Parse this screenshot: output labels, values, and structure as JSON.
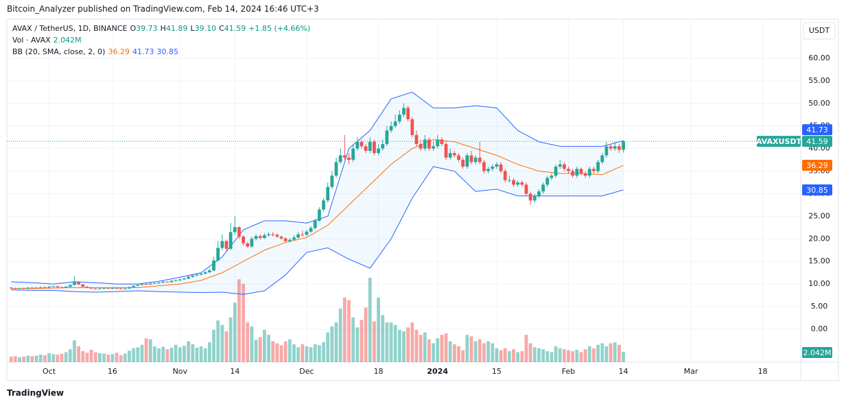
{
  "header": "Bitcoin_Analyzer published on TradingView.com, Feb 14, 2024 16:46 UTC+3",
  "footer": "TradingView",
  "chart_data": {
    "type": "candlestick",
    "legend": {
      "symbol": "AVAX / TetherUS, 1D, BINANCE",
      "o": "O",
      "open": "39.73",
      "h": "H",
      "high": "41.89",
      "l": "L",
      "low": "39.10",
      "c": "C",
      "close": "41.59",
      "change": "+1.85 (+4.66%)",
      "vol": "Vol · AVAX",
      "vol_value": "2.042M",
      "bb": "BB (20, SMA, close, 2, 0)"
    },
    "currency": "USDT",
    "symbol_tag": "AVAXUSDT",
    "x": [
      "2023-09-22",
      "2023-09-23",
      "2023-09-24",
      "2023-09-25",
      "2023-09-26",
      "2023-09-27",
      "2023-09-28",
      "2023-09-29",
      "2023-09-30",
      "2023-10-01",
      "2023-10-02",
      "2023-10-03",
      "2023-10-04",
      "2023-10-05",
      "2023-10-06",
      "2023-10-07",
      "2023-10-08",
      "2023-10-09",
      "2023-10-10",
      "2023-10-11",
      "2023-10-12",
      "2023-10-13",
      "2023-10-14",
      "2023-10-15",
      "2023-10-16",
      "2023-10-17",
      "2023-10-18",
      "2023-10-19",
      "2023-10-20",
      "2023-10-21",
      "2023-10-22",
      "2023-10-23",
      "2023-10-24",
      "2023-10-25",
      "2023-10-26",
      "2023-10-27",
      "2023-10-28",
      "2023-10-29",
      "2023-10-30",
      "2023-10-31",
      "2023-11-01",
      "2023-11-02",
      "2023-11-03",
      "2023-11-04",
      "2023-11-05",
      "2023-11-06",
      "2023-11-07",
      "2023-11-08",
      "2023-11-09",
      "2023-11-10",
      "2023-11-11",
      "2023-11-12",
      "2023-11-13",
      "2023-11-14",
      "2023-11-15",
      "2023-11-16",
      "2023-11-17",
      "2023-11-18",
      "2023-11-19",
      "2023-11-20",
      "2023-11-21",
      "2023-11-22",
      "2023-11-23",
      "2023-11-24",
      "2023-11-25",
      "2023-11-26",
      "2023-11-27",
      "2023-11-28",
      "2023-11-29",
      "2023-11-30",
      "2023-12-01",
      "2023-12-02",
      "2023-12-03",
      "2023-12-04",
      "2023-12-05",
      "2023-12-06",
      "2023-12-07",
      "2023-12-08",
      "2023-12-09",
      "2023-12-10",
      "2023-12-11",
      "2023-12-12",
      "2023-12-13",
      "2023-12-14",
      "2023-12-15",
      "2023-12-16",
      "2023-12-17",
      "2023-12-18",
      "2023-12-19",
      "2023-12-20",
      "2023-12-21",
      "2023-12-22",
      "2023-12-23",
      "2023-12-24",
      "2023-12-25",
      "2023-12-26",
      "2023-12-27",
      "2023-12-28",
      "2023-12-29",
      "2023-12-30",
      "2023-12-31",
      "2024-01-01",
      "2024-01-02",
      "2024-01-03",
      "2024-01-04",
      "2024-01-05",
      "2024-01-06",
      "2024-01-07",
      "2024-01-08",
      "2024-01-09",
      "2024-01-10",
      "2024-01-11",
      "2024-01-12",
      "2024-01-13",
      "2024-01-14",
      "2024-01-15",
      "2024-01-16",
      "2024-01-17",
      "2024-01-18",
      "2024-01-19",
      "2024-01-20",
      "2024-01-21",
      "2024-01-22",
      "2024-01-23",
      "2024-01-24",
      "2024-01-25",
      "2024-01-26",
      "2024-01-27",
      "2024-01-28",
      "2024-01-29",
      "2024-01-30",
      "2024-01-31",
      "2024-02-01",
      "2024-02-02",
      "2024-02-03",
      "2024-02-04",
      "2024-02-05",
      "2024-02-06",
      "2024-02-07",
      "2024-02-08",
      "2024-02-09",
      "2024-02-10",
      "2024-02-11",
      "2024-02-12",
      "2024-02-13",
      "2024-02-14"
    ],
    "open": [
      9.2,
      9.1,
      9.0,
      9.1,
      9.0,
      9.2,
      9.1,
      9.2,
      9.3,
      9.2,
      9.4,
      9.5,
      9.3,
      9.2,
      9.4,
      9.8,
      10.5,
      9.9,
      9.4,
      9.2,
      9.0,
      8.9,
      9.0,
      9.1,
      9.0,
      9.1,
      9.0,
      8.9,
      9.0,
      9.3,
      9.6,
      9.8,
      10.0,
      9.9,
      10.1,
      10.2,
      10.3,
      10.5,
      10.4,
      10.7,
      10.8,
      11.0,
      11.2,
      11.6,
      11.9,
      12.1,
      12.3,
      12.6,
      13.0,
      15.2,
      18.0,
      19.5,
      17.8,
      21.5,
      22.6,
      20.5,
      19.0,
      18.3,
      20.0,
      20.6,
      20.2,
      20.8,
      21.0,
      20.9,
      20.5,
      20.1,
      19.5,
      19.8,
      20.3,
      21.0,
      20.9,
      21.6,
      22.4,
      24.0,
      26.5,
      28.5,
      31.5,
      34.0,
      37.0,
      38.5,
      38.0,
      37.5,
      40.0,
      41.5,
      40.5,
      39.5,
      41.5,
      39.0,
      40.0,
      41.0,
      44.0,
      45.0,
      46.0,
      47.5,
      49.0,
      46.5,
      43.0,
      41.0,
      40.0,
      42.0,
      40.0,
      40.5,
      42.0,
      41.0,
      38.0,
      39.0,
      38.5,
      37.5,
      36.0,
      38.5,
      37.0,
      38.0,
      37.0,
      35.0,
      35.5,
      36.0,
      36.5,
      35.0,
      33.0,
      33.0,
      32.0,
      32.5,
      32.0,
      30.0,
      28.5,
      29.5,
      30.5,
      32.0,
      33.5,
      34.0,
      36.0,
      36.5,
      35.5,
      35.0,
      34.0,
      35.5,
      34.5,
      34.0,
      35.5,
      35.0,
      37.0,
      38.5,
      40.5,
      40.0,
      40.5,
      39.73
    ],
    "high": [
      9.3,
      9.2,
      9.2,
      9.2,
      9.3,
      9.3,
      9.3,
      9.4,
      9.4,
      9.5,
      9.6,
      9.6,
      9.4,
      9.5,
      9.9,
      11.7,
      10.6,
      10.0,
      9.5,
      9.3,
      9.1,
      9.1,
      9.2,
      9.2,
      9.2,
      9.2,
      9.1,
      9.1,
      9.4,
      9.7,
      9.9,
      10.2,
      10.1,
      10.3,
      10.3,
      10.5,
      10.7,
      10.6,
      10.8,
      11.0,
      11.2,
      11.4,
      11.8,
      12.1,
      12.3,
      12.6,
      12.9,
      13.4,
      16.0,
      19.5,
      21.0,
      19.8,
      23.5,
      25.0,
      22.8,
      20.8,
      19.3,
      20.5,
      21.0,
      21.0,
      21.2,
      21.5,
      21.5,
      21.2,
      20.7,
      20.4,
      20.2,
      20.8,
      21.5,
      21.8,
      22.0,
      22.8,
      24.5,
      27.0,
      29.0,
      32.5,
      35.0,
      38.0,
      40.0,
      43.0,
      39.0,
      41.0,
      42.5,
      42.0,
      41.0,
      42.5,
      42.0,
      41.0,
      42.0,
      45.0,
      46.0,
      47.5,
      48.5,
      50.0,
      49.5,
      47.0,
      44.0,
      42.0,
      43.0,
      42.5,
      41.5,
      43.0,
      42.5,
      41.5,
      40.0,
      39.5,
      39.0,
      38.0,
      39.0,
      39.5,
      38.5,
      41.5,
      37.5,
      36.0,
      36.5,
      37.0,
      37.0,
      35.5,
      34.0,
      33.5,
      33.0,
      33.0,
      32.5,
      30.5,
      30.0,
      31.0,
      32.5,
      34.0,
      34.5,
      36.5,
      37.5,
      37.0,
      36.0,
      35.5,
      36.0,
      35.8,
      35.0,
      36.0,
      36.0,
      37.5,
      39.0,
      41.5,
      41.0,
      41.5,
      41.0,
      41.89
    ],
    "low": [
      8.9,
      8.9,
      8.9,
      8.9,
      8.9,
      9.0,
      9.0,
      9.1,
      9.1,
      9.1,
      9.3,
      9.2,
      9.1,
      9.1,
      9.3,
      9.7,
      9.8,
      9.3,
      9.1,
      8.9,
      8.8,
      8.8,
      8.9,
      8.9,
      8.9,
      8.9,
      8.8,
      8.8,
      8.9,
      9.2,
      9.5,
      9.7,
      9.8,
      9.8,
      10.0,
      10.1,
      10.2,
      10.3,
      10.3,
      10.6,
      10.7,
      10.9,
      11.1,
      11.4,
      11.7,
      11.9,
      12.1,
      12.4,
      12.8,
      15.0,
      17.5,
      17.2,
      17.5,
      20.8,
      20.0,
      18.5,
      18.0,
      18.0,
      19.6,
      19.8,
      20.0,
      20.5,
      20.5,
      20.2,
      19.8,
      19.2,
      19.2,
      19.6,
      20.1,
      20.5,
      20.6,
      21.3,
      22.0,
      23.8,
      26.0,
      28.0,
      31.0,
      33.5,
      36.5,
      37.5,
      36.5,
      37.0,
      39.5,
      40.0,
      39.0,
      39.0,
      38.5,
      38.5,
      39.5,
      40.5,
      43.5,
      44.5,
      45.5,
      47.0,
      46.0,
      42.5,
      40.5,
      39.5,
      39.5,
      39.5,
      39.5,
      40.0,
      40.5,
      37.5,
      37.5,
      38.0,
      37.0,
      35.5,
      35.5,
      36.5,
      36.5,
      36.5,
      34.5,
      34.5,
      35.0,
      35.5,
      34.5,
      32.5,
      32.5,
      31.5,
      31.5,
      31.5,
      29.5,
      27.5,
      28.0,
      29.0,
      30.0,
      31.5,
      33.0,
      33.5,
      35.5,
      35.0,
      34.5,
      33.5,
      33.5,
      34.0,
      33.5,
      33.5,
      34.5,
      34.5,
      36.5,
      38.0,
      39.5,
      39.5,
      39.0,
      39.1
    ],
    "close": [
      9.1,
      9.0,
      9.1,
      9.0,
      9.2,
      9.1,
      9.2,
      9.3,
      9.2,
      9.4,
      9.5,
      9.3,
      9.2,
      9.4,
      9.8,
      10.5,
      9.9,
      9.4,
      9.2,
      9.0,
      8.9,
      9.0,
      9.1,
      9.0,
      9.1,
      9.0,
      8.9,
      9.0,
      9.3,
      9.6,
      9.8,
      10.0,
      9.9,
      10.1,
      10.2,
      10.3,
      10.5,
      10.4,
      10.7,
      10.8,
      11.0,
      11.2,
      11.6,
      11.9,
      12.1,
      12.3,
      12.6,
      13.0,
      15.2,
      18.0,
      19.5,
      17.8,
      21.5,
      22.6,
      20.5,
      19.0,
      18.3,
      20.0,
      20.6,
      20.2,
      20.8,
      21.0,
      20.9,
      20.5,
      20.1,
      19.5,
      19.8,
      20.3,
      21.0,
      20.9,
      21.6,
      22.4,
      24.0,
      26.5,
      28.5,
      31.5,
      34.0,
      37.0,
      38.5,
      38.0,
      37.5,
      40.0,
      41.5,
      40.5,
      39.5,
      41.5,
      39.0,
      40.0,
      41.0,
      44.0,
      45.0,
      46.0,
      47.5,
      49.0,
      46.5,
      43.0,
      41.0,
      40.0,
      42.0,
      40.0,
      40.5,
      42.0,
      41.0,
      38.0,
      39.0,
      38.5,
      37.5,
      36.0,
      38.5,
      37.0,
      38.0,
      37.0,
      35.0,
      35.5,
      36.0,
      36.5,
      35.0,
      33.0,
      33.0,
      32.0,
      32.5,
      32.0,
      30.0,
      28.5,
      29.5,
      30.5,
      32.0,
      33.5,
      34.0,
      36.0,
      36.5,
      35.5,
      35.0,
      34.0,
      35.5,
      34.5,
      34.0,
      35.5,
      35.0,
      37.0,
      38.5,
      40.5,
      40.0,
      40.5,
      39.73,
      41.59
    ],
    "volume": [
      1.1,
      1.2,
      1.0,
      1.1,
      1.3,
      1.2,
      1.3,
      1.5,
      1.4,
      1.8,
      1.6,
      1.5,
      1.7,
      2.0,
      2.6,
      4.4,
      3.2,
      2.2,
      1.9,
      2.5,
      2.0,
      1.8,
      1.7,
      1.5,
      1.6,
      1.9,
      1.4,
      1.7,
      2.3,
      2.8,
      3.0,
      3.5,
      4.8,
      4.6,
      3.2,
      2.8,
      3.1,
      2.6,
      2.9,
      3.5,
      3.0,
      3.3,
      4.2,
      3.6,
      2.9,
      3.2,
      2.8,
      4.0,
      6.5,
      8.4,
      7.5,
      6.2,
      9.0,
      12.0,
      16.7,
      15.8,
      8.0,
      7.2,
      4.5,
      5.0,
      6.5,
      5.5,
      4.2,
      3.8,
      3.4,
      4.2,
      4.6,
      3.6,
      3.0,
      3.6,
      3.2,
      3.0,
      3.6,
      3.4,
      4.0,
      6.0,
      7.2,
      8.0,
      10.8,
      13.0,
      12.5,
      9.0,
      7.0,
      8.5,
      11.0,
      17.0,
      8.2,
      13.0,
      9.5,
      8.0,
      8.0,
      7.5,
      6.5,
      6.2,
      7.0,
      8.0,
      6.5,
      5.5,
      6.0,
      4.6,
      3.8,
      4.8,
      5.5,
      5.8,
      4.2,
      3.6,
      3.2,
      2.4,
      5.5,
      5.2,
      4.2,
      4.6,
      3.8,
      4.2,
      3.8,
      2.8,
      2.4,
      2.8,
      2.2,
      2.6,
      2.0,
      2.2,
      5.5,
      3.8,
      3.0,
      2.8,
      2.6,
      2.2,
      2.0,
      3.2,
      2.8,
      2.6,
      2.4,
      2.2,
      2.5,
      2.0,
      2.6,
      3.2,
      2.8,
      3.5,
      3.8,
      3.2,
      3.8,
      4.0,
      3.5,
      2.042
    ],
    "up_color": "#26a69a",
    "down_color": "#ef5350",
    "bb": {
      "x": [
        "2023-09-22",
        "2023-09-27",
        "2023-10-02",
        "2023-10-07",
        "2023-10-12",
        "2023-10-17",
        "2023-10-22",
        "2023-10-27",
        "2023-11-01",
        "2023-11-06",
        "2023-11-11",
        "2023-11-16",
        "2023-11-21",
        "2023-11-26",
        "2023-12-01",
        "2023-12-06",
        "2023-12-11",
        "2023-12-16",
        "2023-12-21",
        "2023-12-26",
        "2023-12-31",
        "2024-01-05",
        "2024-01-10",
        "2024-01-15",
        "2024-01-20",
        "2024-01-25",
        "2024-01-30",
        "2024-02-04",
        "2024-02-09",
        "2024-02-14"
      ],
      "series": [
        {
          "name": "basis",
          "color": "#ff6d00",
          "values": [
            9.0,
            9.0,
            9.1,
            9.2,
            9.2,
            9.2,
            9.2,
            9.6,
            10.0,
            10.8,
            12.5,
            15.0,
            17.5,
            19.2,
            20.3,
            23.0,
            27.5,
            32.0,
            36.5,
            40.0,
            42.0,
            41.5,
            40.0,
            38.5,
            36.5,
            35.0,
            34.5,
            34.5,
            34.2,
            36.29
          ]
        },
        {
          "name": "upper",
          "color": "#2962ff",
          "values": [
            10.5,
            10.3,
            10.0,
            10.5,
            10.3,
            10.0,
            10.0,
            10.6,
            11.5,
            12.5,
            16.0,
            22.0,
            24.0,
            24.0,
            23.5,
            25.0,
            40.0,
            44.0,
            51.0,
            52.5,
            49.0,
            49.0,
            49.5,
            49.0,
            44.0,
            41.5,
            40.5,
            40.5,
            40.5,
            41.73
          ]
        },
        {
          "name": "lower",
          "color": "#2962ff",
          "values": [
            8.7,
            8.6,
            8.6,
            8.3,
            8.2,
            8.3,
            8.5,
            8.3,
            8.2,
            8.1,
            8.2,
            7.7,
            8.5,
            12.0,
            17.0,
            18.0,
            15.5,
            13.5,
            20.0,
            29.0,
            36.0,
            35.0,
            30.5,
            31.0,
            29.5,
            29.5,
            29.5,
            29.5,
            29.5,
            30.85
          ]
        }
      ],
      "fill": "rgba(33,150,243,0.06)"
    },
    "xlim": [
      "2023-09-21",
      "2024-03-27"
    ],
    "xticks": [
      {
        "value": "2023-10-01",
        "label": "Oct"
      },
      {
        "value": "2023-10-16",
        "label": "16"
      },
      {
        "value": "2023-11-01",
        "label": "Nov"
      },
      {
        "value": "2023-11-14",
        "label": "14"
      },
      {
        "value": "2023-12-01",
        "label": "Dec"
      },
      {
        "value": "2023-12-18",
        "label": "18"
      },
      {
        "value": "2024-01-01",
        "label": "2024"
      },
      {
        "value": "2024-01-15",
        "label": "15"
      },
      {
        "value": "2024-02-01",
        "label": "Feb"
      },
      {
        "value": "2024-02-14",
        "label": "14"
      },
      {
        "value": "2024-03-01",
        "label": "Mar"
      },
      {
        "value": "2024-03-18",
        "label": "18"
      }
    ],
    "ylim": [
      -7.3,
      68.5
    ],
    "yticks": [
      {
        "value": 0,
        "label": "0.00"
      },
      {
        "value": 5,
        "label": "5.00"
      },
      {
        "value": 10,
        "label": "10.00"
      },
      {
        "value": 15,
        "label": "15.00"
      },
      {
        "value": 20,
        "label": "20.00"
      },
      {
        "value": 25,
        "label": "25.00"
      },
      {
        "value": 30,
        "label": "30.00"
      },
      {
        "value": 35,
        "label": "35.00"
      },
      {
        "value": 40,
        "label": "40.00"
      },
      {
        "value": 45,
        "label": "45.00"
      },
      {
        "value": 50,
        "label": "50.00"
      },
      {
        "value": 55,
        "label": "55.00"
      },
      {
        "value": 60,
        "label": "60.00"
      }
    ],
    "vlim": [
      0,
      69
    ],
    "grid": true
  }
}
